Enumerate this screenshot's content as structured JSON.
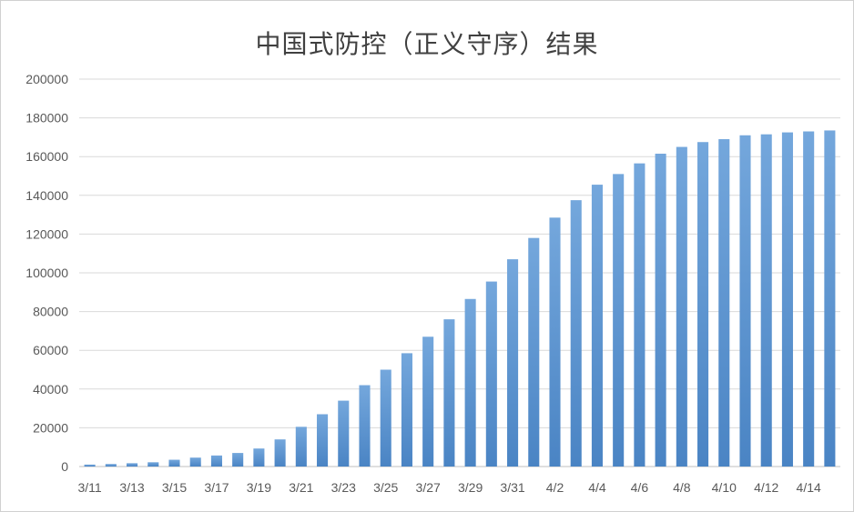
{
  "chart_data": {
    "type": "bar",
    "title": "中国式防控（正义守序）结果",
    "xlabel": "",
    "ylabel": "",
    "ylim": [
      0,
      200000
    ],
    "yticks": [
      0,
      20000,
      40000,
      60000,
      80000,
      100000,
      120000,
      140000,
      160000,
      180000,
      200000
    ],
    "grid": true,
    "legend": "none",
    "bar_color_top": "#74a7dc",
    "bar_color_bottom": "#4a84c4",
    "categories": [
      "3/11",
      "3/12",
      "3/13",
      "3/14",
      "3/15",
      "3/16",
      "3/17",
      "3/18",
      "3/19",
      "3/20",
      "3/21",
      "3/22",
      "3/23",
      "3/24",
      "3/25",
      "3/26",
      "3/27",
      "3/28",
      "3/29",
      "3/30",
      "3/31",
      "4/1",
      "4/2",
      "4/3",
      "4/4",
      "4/5",
      "4/6",
      "4/7",
      "4/8",
      "4/9",
      "4/10",
      "4/11",
      "4/12",
      "4/13",
      "4/14",
      "4/15"
    ],
    "x_tick_labels": [
      "3/11",
      "3/13",
      "3/15",
      "3/17",
      "3/19",
      "3/21",
      "3/23",
      "3/25",
      "3/27",
      "3/29",
      "3/31",
      "4/2",
      "4/4",
      "4/6",
      "4/8",
      "4/10",
      "4/12",
      "4/14"
    ],
    "values": [
      1000,
      1300,
      1700,
      2200,
      3500,
      4600,
      5700,
      7000,
      9300,
      14000,
      20500,
      27000,
      34000,
      42000,
      50000,
      58500,
      67000,
      76000,
      86500,
      95500,
      107000,
      118000,
      128500,
      137500,
      145500,
      151000,
      156500,
      161500,
      165000,
      167500,
      169000,
      171000,
      171500,
      172500,
      173000,
      173500
    ]
  }
}
